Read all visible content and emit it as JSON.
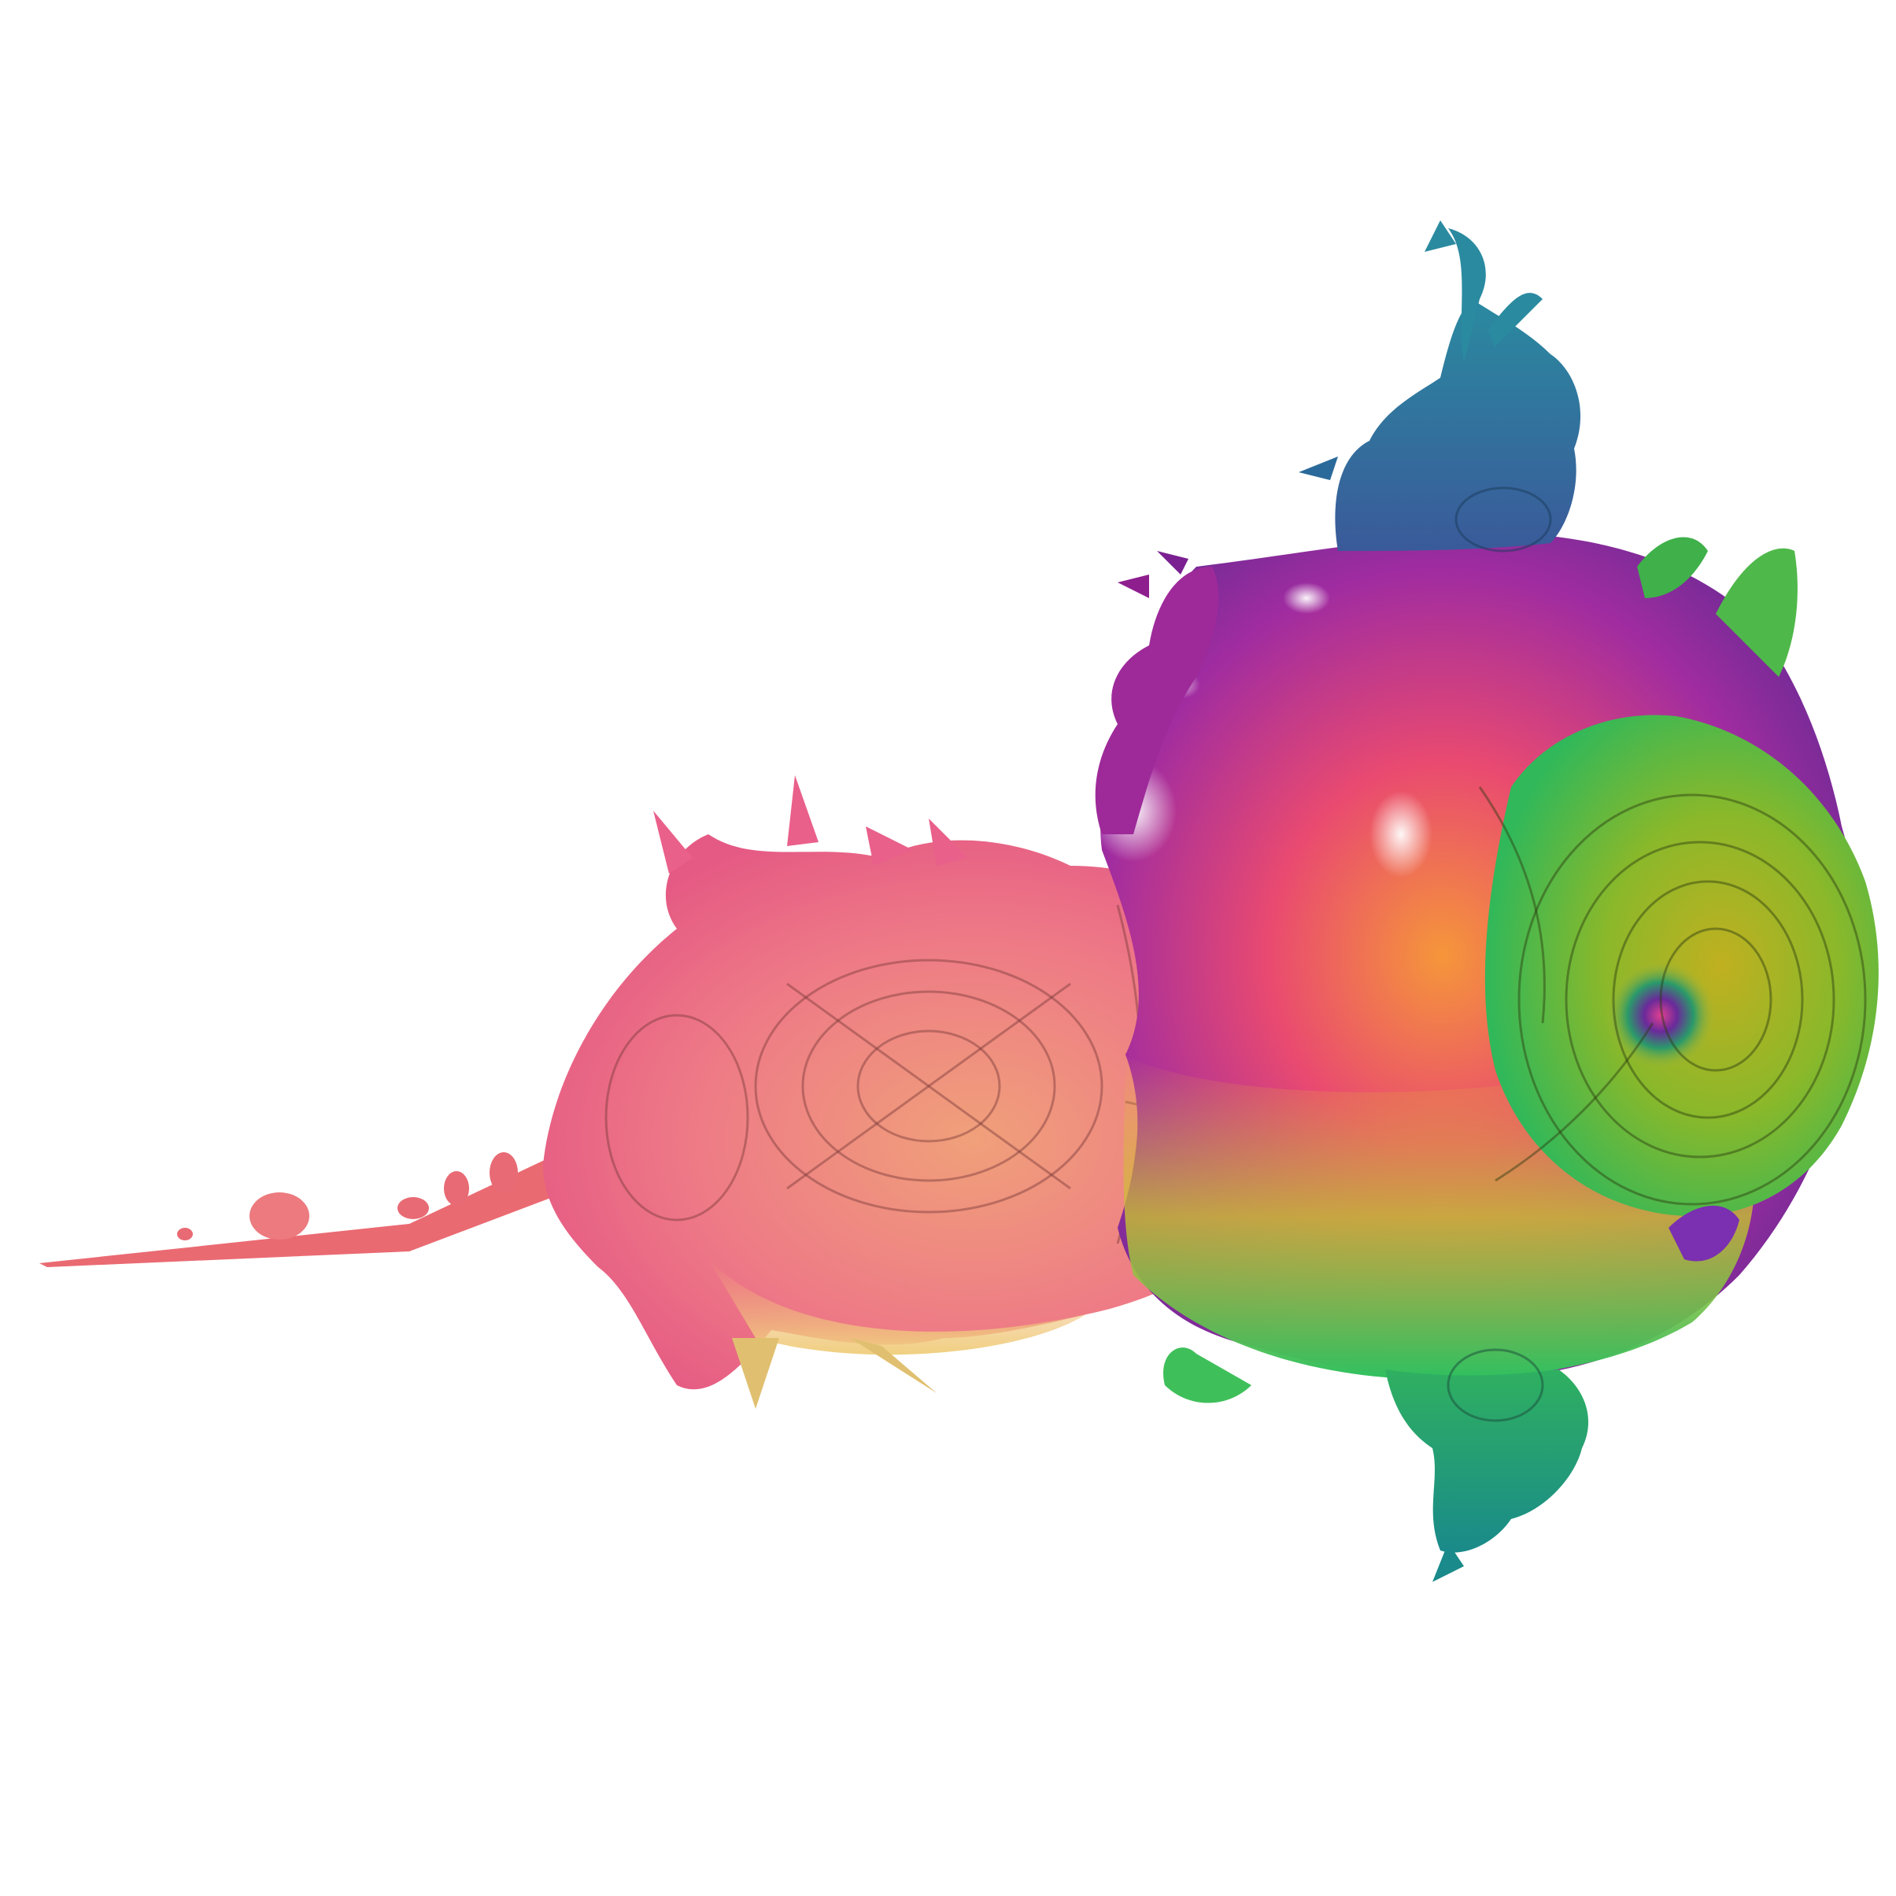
{
  "scene": {
    "subject": "mandelbrot-fractal",
    "background_color": "#ffffff",
    "palette": {
      "top_bulb": "#2a7f9e",
      "upper_left": "#8e1e8e",
      "cardioid_top": "#6a1f8a",
      "cardioid_left": "#e0307a",
      "center": "#f07a3a",
      "lower": "#3fbf4a",
      "bottom_bulb": "#1f9e7a",
      "right_lobe": "#9fb82a",
      "left_bulb": "#f07a8a",
      "left_bulb_lower": "#f2b07a",
      "antenna": "#e8606a",
      "small_purple_bulb": "#7a30b0"
    }
  }
}
